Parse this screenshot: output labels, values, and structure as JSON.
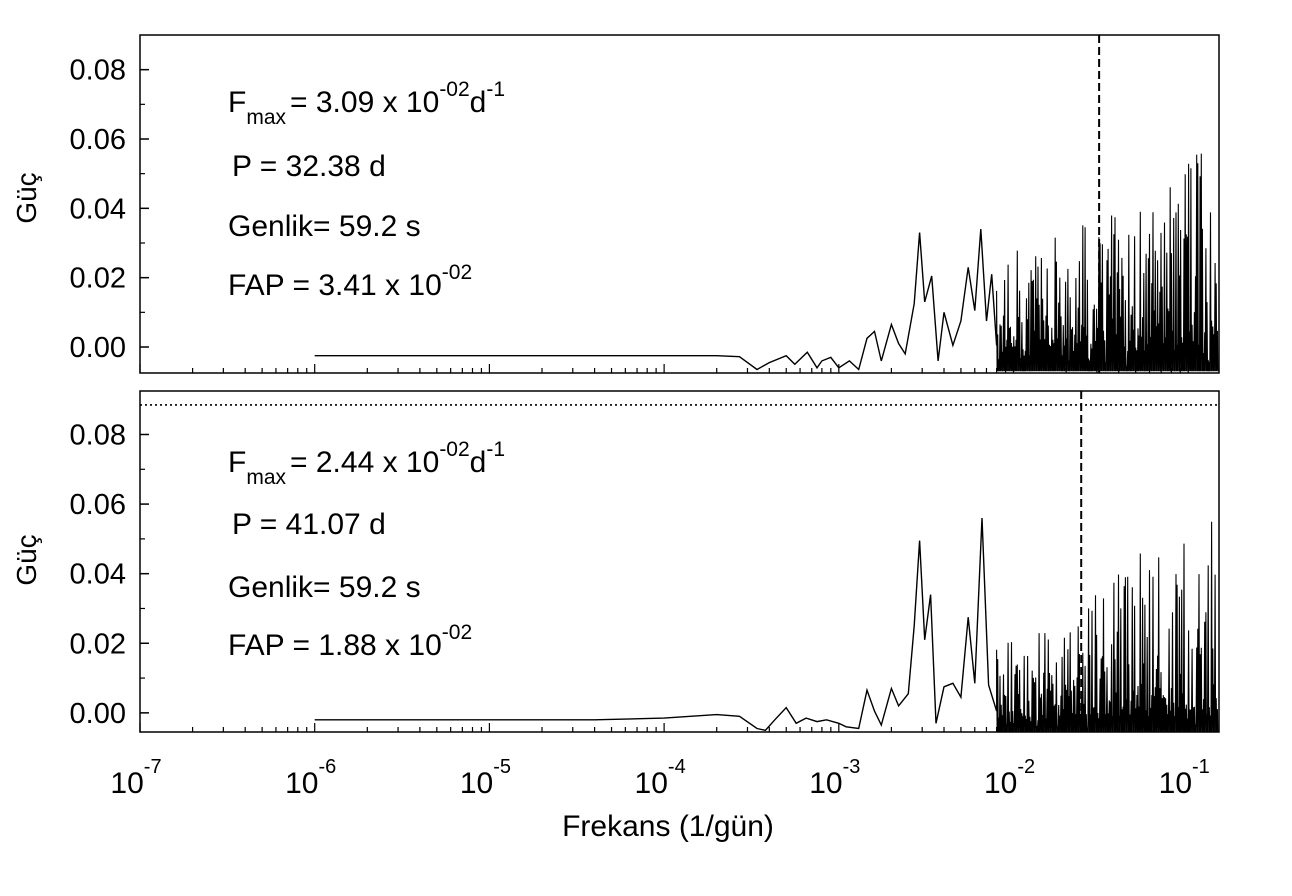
{
  "chart_data": [
    {
      "type": "line",
      "panel": "top",
      "ylabel": "Güç",
      "xlabel": "",
      "xscale": "log",
      "xlim": [
        1e-07,
        0.15
      ],
      "ylim": [
        -0.0075,
        0.09
      ],
      "y_ticks": [
        "0.00",
        "0.02",
        "0.04",
        "0.06",
        "0.08"
      ],
      "y_tick_values": [
        0.0,
        0.02,
        0.04,
        0.06,
        0.08
      ],
      "peak_frequency": 0.0309,
      "peak_marker": "dashed vertical line",
      "annotations": {
        "fmax_label": "F",
        "fmax_sub": "max",
        "fmax_eq": "=  3.09 x 10",
        "fmax_exp": "-02",
        "fmax_unit": "d",
        "fmax_unit_exp": "-1",
        "period": "P = 32.38 d",
        "amplitude": "Genlik= 59.2 s",
        "fap_eq": "FAP =  3.41 x 10",
        "fap_exp": "-02"
      },
      "series": [
        {
          "points": [
            [
              1e-06,
              -0.0025
            ],
            [
              2e-06,
              -0.0025
            ],
            [
              1e-05,
              -0.0025
            ],
            [
              5e-05,
              -0.0025
            ],
            [
              0.0001,
              -0.0025
            ],
            [
              0.0002,
              -0.0025
            ],
            [
              0.00027,
              -0.0028
            ],
            [
              0.00034,
              -0.0065
            ],
            [
              0.0004,
              -0.0045
            ],
            [
              0.0005,
              -0.0025
            ],
            [
              0.00056,
              -0.005
            ],
            [
              0.00066,
              -0.0015
            ],
            [
              0.00075,
              -0.006
            ],
            [
              0.0008,
              -0.004
            ],
            [
              0.0009,
              -0.003
            ],
            [
              0.001,
              -0.006
            ],
            [
              0.00115,
              -0.004
            ],
            [
              0.0013,
              -0.0065
            ],
            [
              0.00145,
              0.0025
            ],
            [
              0.0016,
              0.0045
            ],
            [
              0.00175,
              -0.004
            ],
            [
              0.002,
              0.0065
            ],
            [
              0.0022,
              0.001
            ],
            [
              0.0024,
              -0.002
            ],
            [
              0.0027,
              0.0125
            ],
            [
              0.0029,
              0.033
            ],
            [
              0.0031,
              0.013
            ],
            [
              0.0034,
              0.0205
            ],
            [
              0.0037,
              -0.004
            ],
            [
              0.004,
              0.01
            ],
            [
              0.0045,
              0.0005
            ],
            [
              0.005,
              0.0075
            ],
            [
              0.0055,
              0.023
            ],
            [
              0.006,
              0.0105
            ],
            [
              0.0065,
              0.034
            ],
            [
              0.007,
              0.0075
            ],
            [
              0.0075,
              0.021
            ],
            [
              0.008,
              0.0005
            ]
          ]
        }
      ]
    },
    {
      "type": "line",
      "panel": "bottom",
      "ylabel": "Güç",
      "xlabel": "Frekans (1/gün)",
      "xscale": "log",
      "xlim": [
        1e-07,
        0.15
      ],
      "ylim": [
        -0.0055,
        0.0925
      ],
      "y_ticks": [
        "0.00",
        "0.02",
        "0.04",
        "0.06",
        "0.08"
      ],
      "y_tick_values": [
        0.0,
        0.02,
        0.04,
        0.06,
        0.08
      ],
      "x_tick_exponents": [
        "-7",
        "-6",
        "-5",
        "-4",
        "-3",
        "-2",
        "-1"
      ],
      "x_tick_base": "10",
      "x_tick_values": [
        1e-07,
        1e-06,
        1e-05,
        0.0001,
        0.001,
        0.01,
        0.1
      ],
      "fap_threshold_power": 0.0885,
      "peak_frequency": 0.0244,
      "peak_marker": "dashed vertical line",
      "annotations": {
        "fmax_label": "F",
        "fmax_sub": "max",
        "fmax_eq": "= 2.44 x 10",
        "fmax_exp": "-02",
        "fmax_unit": "d",
        "fmax_unit_exp": "-1",
        "period": "P =  41.07 d",
        "amplitude": "Genlik= 59.2 s",
        "fap_eq": "FAP =  1.88  x 10",
        "fap_exp": "-02"
      },
      "series": [
        {
          "points": [
            [
              1e-06,
              -0.002
            ],
            [
              3e-06,
              -0.002
            ],
            [
              1e-05,
              -0.002
            ],
            [
              4e-05,
              -0.002
            ],
            [
              0.0001,
              -0.0015
            ],
            [
              0.0002,
              -0.0005
            ],
            [
              0.00027,
              -0.001
            ],
            [
              0.00034,
              -0.0045
            ],
            [
              0.00038,
              -0.005
            ],
            [
              0.00043,
              -0.002
            ],
            [
              0.0005,
              0.0015
            ],
            [
              0.00057,
              -0.003
            ],
            [
              0.00065,
              -0.0015
            ],
            [
              0.00075,
              -0.0025
            ],
            [
              0.00085,
              -0.002
            ],
            [
              0.001,
              -0.003
            ],
            [
              0.0011,
              -0.004
            ],
            [
              0.0013,
              -0.0045
            ],
            [
              0.00145,
              0.0065
            ],
            [
              0.0016,
              0.0005
            ],
            [
              0.00175,
              -0.0035
            ],
            [
              0.002,
              0.007
            ],
            [
              0.0022,
              0.002
            ],
            [
              0.0025,
              0.0055
            ],
            [
              0.0027,
              0.025
            ],
            [
              0.0029,
              0.0495
            ],
            [
              0.0031,
              0.021
            ],
            [
              0.00335,
              0.034
            ],
            [
              0.0036,
              -0.003
            ],
            [
              0.004,
              0.0075
            ],
            [
              0.0045,
              0.0085
            ],
            [
              0.005,
              0.0045
            ],
            [
              0.0055,
              0.0275
            ],
            [
              0.006,
              0.0085
            ],
            [
              0.0066,
              0.056
            ],
            [
              0.0072,
              0.008
            ],
            [
              0.008,
              0.0005
            ]
          ]
        }
      ]
    }
  ]
}
